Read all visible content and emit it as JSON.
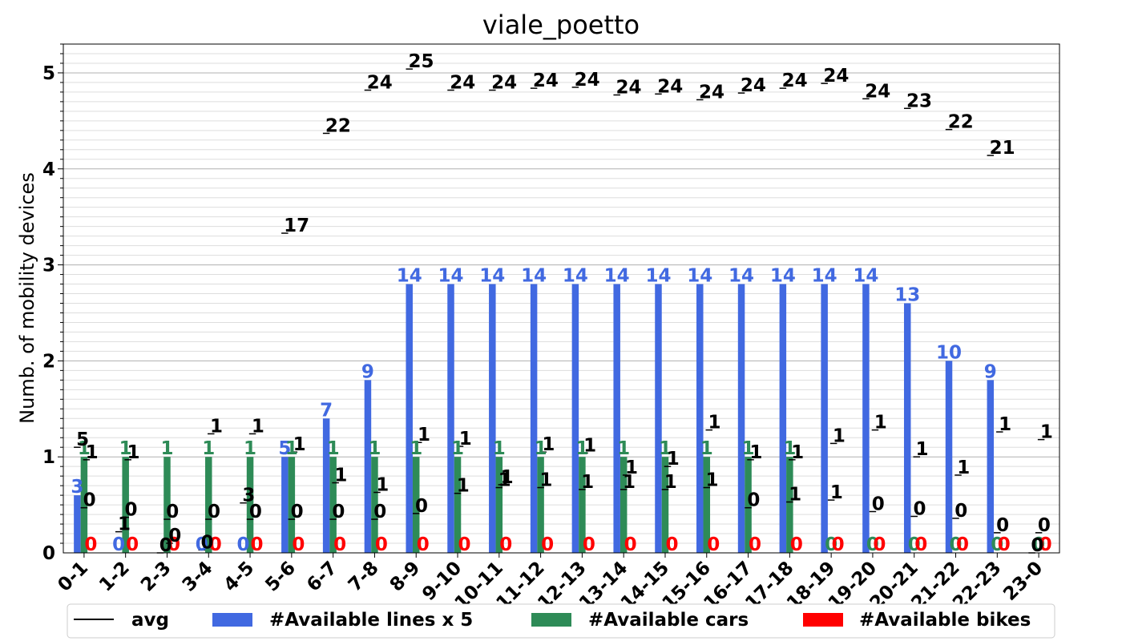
{
  "chart_data": {
    "type": "bar",
    "title": "viale_poetto",
    "xlabel": "",
    "ylabel": "Numb. of mobility devices",
    "ylim": [
      0,
      5.3
    ],
    "yticks": [
      "0",
      "1",
      "2",
      "3",
      "4",
      "5"
    ],
    "grid": true,
    "categories": [
      "0-1",
      "1-2",
      "2-3",
      "3-4",
      "4-5",
      "5-6",
      "6-7",
      "7-8",
      "8-9",
      "9-10",
      "10-11",
      "11-12",
      "12-13",
      "13-14",
      "14-15",
      "15-16",
      "16-17",
      "17-18",
      "18-19",
      "19-20",
      "20-21",
      "21-22",
      "22-23",
      "23-0"
    ],
    "series": [
      {
        "name": "#Available lines x 5",
        "color": "#4169e1",
        "values": [
          0.6,
          0,
          0,
          0,
          0,
          1.0,
          1.4,
          1.8,
          2.8,
          2.8,
          2.8,
          2.8,
          2.8,
          2.8,
          2.8,
          2.8,
          2.8,
          2.8,
          2.8,
          2.8,
          2.6,
          2.0,
          1.8,
          0
        ],
        "labels": [
          "3",
          "0",
          "",
          "0",
          "0",
          "5",
          "7",
          "9",
          "14",
          "14",
          "14",
          "14",
          "14",
          "14",
          "14",
          "14",
          "14",
          "14",
          "14",
          "14",
          "13",
          "10",
          "9",
          ""
        ]
      },
      {
        "name": "#Available cars",
        "color": "#2e8b57",
        "values": [
          1,
          1,
          1,
          1,
          1,
          1,
          1,
          1,
          1,
          1,
          1,
          1,
          1,
          1,
          1,
          1,
          1,
          1,
          0,
          0,
          0,
          0,
          0,
          0
        ],
        "labels": [
          "1",
          "1",
          "1",
          "1",
          "1",
          "1",
          "1",
          "1",
          "1",
          "1",
          "1",
          "1",
          "1",
          "1",
          "1",
          "1",
          "1",
          "1",
          "0",
          "0",
          "0",
          "0",
          "0",
          "0"
        ]
      },
      {
        "name": "#Available bikes",
        "color": "#ff0000",
        "values": [
          0,
          0,
          0,
          0,
          0,
          0,
          0,
          0,
          0,
          0,
          0,
          0,
          0,
          0,
          0,
          0,
          0,
          0,
          0,
          0,
          0,
          0,
          0,
          0
        ],
        "labels": [
          "0",
          "0",
          "0",
          "0",
          "0",
          "0",
          "0",
          "0",
          "0",
          "0",
          "0",
          "0",
          "0",
          "0",
          "0",
          "0",
          "0",
          "0",
          "0",
          "0",
          "0",
          "0",
          "0",
          "0"
        ]
      }
    ],
    "avg": {
      "name": "avg",
      "color": "#000000",
      "lines": [
        {
          "value": 1.1,
          "label": "5"
        },
        {
          "value": 0.22,
          "label": "1"
        },
        {
          "value": 0.0,
          "label": "0"
        },
        {
          "value": 0.03,
          "label": "0"
        },
        {
          "value": 0.52,
          "label": "3"
        },
        {
          "value": 3.33,
          "label": "17"
        },
        {
          "value": 4.37,
          "label": "22"
        },
        {
          "value": 4.82,
          "label": "24"
        },
        {
          "value": 5.04,
          "label": "25"
        },
        {
          "value": 4.82,
          "label": "24"
        },
        {
          "value": 4.82,
          "label": "24"
        },
        {
          "value": 4.84,
          "label": "24"
        },
        {
          "value": 4.85,
          "label": "24"
        },
        {
          "value": 4.77,
          "label": "24"
        },
        {
          "value": 4.78,
          "label": "24"
        },
        {
          "value": 4.72,
          "label": "24"
        },
        {
          "value": 4.79,
          "label": "24"
        },
        {
          "value": 4.84,
          "label": "24"
        },
        {
          "value": 4.89,
          "label": "24"
        },
        {
          "value": 4.73,
          "label": "24"
        },
        {
          "value": 4.63,
          "label": "23"
        },
        {
          "value": 4.41,
          "label": "22"
        },
        {
          "value": 4.14,
          "label": "21"
        },
        {
          "value": 0.0,
          "label": "0"
        }
      ],
      "cars": [
        {
          "value": 0.97,
          "label": "1"
        },
        {
          "value": 0.97,
          "label": "1"
        },
        {
          "value": 0.1,
          "label": "0"
        },
        {
          "value": 1.24,
          "label": "1"
        },
        {
          "value": 1.24,
          "label": "1"
        },
        {
          "value": 1.05,
          "label": "1"
        },
        {
          "value": 0.73,
          "label": "1"
        },
        {
          "value": 0.63,
          "label": "1"
        },
        {
          "value": 1.15,
          "label": "1"
        },
        {
          "value": 1.11,
          "label": "1"
        },
        {
          "value": 0.71,
          "label": "1"
        },
        {
          "value": 1.05,
          "label": "1"
        },
        {
          "value": 1.04,
          "label": "1"
        },
        {
          "value": 0.81,
          "label": "1"
        },
        {
          "value": 0.9,
          "label": "1"
        },
        {
          "value": 1.28,
          "label": "1"
        },
        {
          "value": 0.97,
          "label": "1"
        },
        {
          "value": 0.97,
          "label": "1"
        },
        {
          "value": 1.14,
          "label": "1"
        },
        {
          "value": 1.28,
          "label": "1"
        },
        {
          "value": 1.0,
          "label": "1"
        },
        {
          "value": 0.81,
          "label": "1"
        },
        {
          "value": 1.26,
          "label": "1"
        },
        {
          "value": 1.18,
          "label": "1"
        }
      ],
      "bikes": [
        {
          "value": 0.47,
          "label": "0"
        },
        {
          "value": 0.37,
          "label": "0"
        },
        {
          "value": 0.35,
          "label": "0"
        },
        {
          "value": 0.35,
          "label": "0"
        },
        {
          "value": 0.35,
          "label": "0"
        },
        {
          "value": 0.35,
          "label": "0"
        },
        {
          "value": 0.35,
          "label": "0"
        },
        {
          "value": 0.35,
          "label": "0"
        },
        {
          "value": 0.41,
          "label": "0"
        },
        {
          "value": 0.62,
          "label": "1"
        },
        {
          "value": 0.68,
          "label": "1"
        },
        {
          "value": 0.68,
          "label": "1"
        },
        {
          "value": 0.66,
          "label": "1"
        },
        {
          "value": 0.66,
          "label": "1"
        },
        {
          "value": 0.66,
          "label": "1"
        },
        {
          "value": 0.68,
          "label": "1"
        },
        {
          "value": 0.47,
          "label": "0"
        },
        {
          "value": 0.53,
          "label": "1"
        },
        {
          "value": 0.55,
          "label": "1"
        },
        {
          "value": 0.43,
          "label": "0"
        },
        {
          "value": 0.38,
          "label": "0"
        },
        {
          "value": 0.36,
          "label": "0"
        },
        {
          "value": 0.21,
          "label": "0"
        },
        {
          "value": 0.21,
          "label": "0"
        }
      ]
    },
    "legend": {
      "position": "bottom",
      "entries": [
        "avg",
        "#Available lines x 5",
        "#Available cars",
        "#Available bikes"
      ]
    }
  }
}
